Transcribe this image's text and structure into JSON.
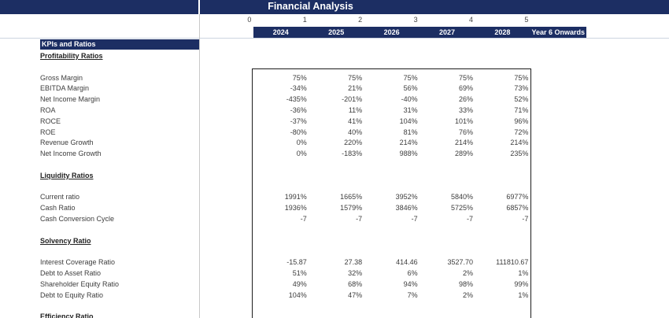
{
  "title": "Financial Analysis",
  "colors": {
    "navy": "#1C2E63",
    "grid_line": "#CCD4E0",
    "divider": "#C9C9C9",
    "label_text": "#3D3D3D",
    "header_text": "#222222",
    "box_border": "#1C1C1C"
  },
  "period_numbers": [
    "0",
    "1",
    "2",
    "3",
    "4",
    "5"
  ],
  "year_columns": [
    "2024",
    "2025",
    "2026",
    "2027",
    "2028",
    "Year 6 Onwards"
  ],
  "left_panel": {
    "header": "KPIs and Ratios"
  },
  "sections": [
    {
      "title": "Profitability Ratios",
      "rows": [
        {
          "label": "Gross Margin",
          "values": [
            "75%",
            "75%",
            "75%",
            "75%",
            "75%"
          ]
        },
        {
          "label": "EBITDA Margin",
          "values": [
            "-34%",
            "21%",
            "56%",
            "69%",
            "73%"
          ]
        },
        {
          "label": "Net Income Margin",
          "values": [
            "-435%",
            "-201%",
            "-40%",
            "26%",
            "52%"
          ]
        },
        {
          "label": "ROA",
          "values": [
            "-36%",
            "11%",
            "31%",
            "33%",
            "71%"
          ]
        },
        {
          "label": "ROCE",
          "values": [
            "-37%",
            "41%",
            "104%",
            "101%",
            "96%"
          ]
        },
        {
          "label": "ROE",
          "values": [
            "-80%",
            "40%",
            "81%",
            "76%",
            "72%"
          ]
        },
        {
          "label": "Revenue Growth",
          "values": [
            "0%",
            "220%",
            "214%",
            "214%",
            "214%"
          ]
        },
        {
          "label": "Net Income Growth",
          "values": [
            "0%",
            "-183%",
            "988%",
            "289%",
            "235%"
          ]
        }
      ]
    },
    {
      "title": "Liquidity Ratios",
      "rows": [
        {
          "label": "Current ratio",
          "values": [
            "1991%",
            "1665%",
            "3952%",
            "5840%",
            "6977%"
          ]
        },
        {
          "label": "Cash Ratio",
          "values": [
            "1936%",
            "1579%",
            "3846%",
            "5725%",
            "6857%"
          ]
        },
        {
          "label": "Cash Conversion Cycle",
          "values": [
            "-7",
            "-7",
            "-7",
            "-7",
            "-7"
          ]
        }
      ]
    },
    {
      "title": "Solvency Ratio",
      "rows": [
        {
          "label": "Interest Coverage Ratio",
          "values": [
            "-15.87",
            "27.38",
            "414.46",
            "3527.70",
            "111810.67"
          ]
        },
        {
          "label": "Debt to Asset Ratio",
          "values": [
            "51%",
            "32%",
            "6%",
            "2%",
            "1%"
          ]
        },
        {
          "label": "Shareholder Equity Ratio",
          "values": [
            "49%",
            "68%",
            "94%",
            "98%",
            "99%"
          ]
        },
        {
          "label": "Debt to Equity Ratio",
          "values": [
            "104%",
            "47%",
            "7%",
            "2%",
            "1%"
          ]
        }
      ]
    },
    {
      "title": "Efficiency Ratio",
      "rows": []
    }
  ]
}
